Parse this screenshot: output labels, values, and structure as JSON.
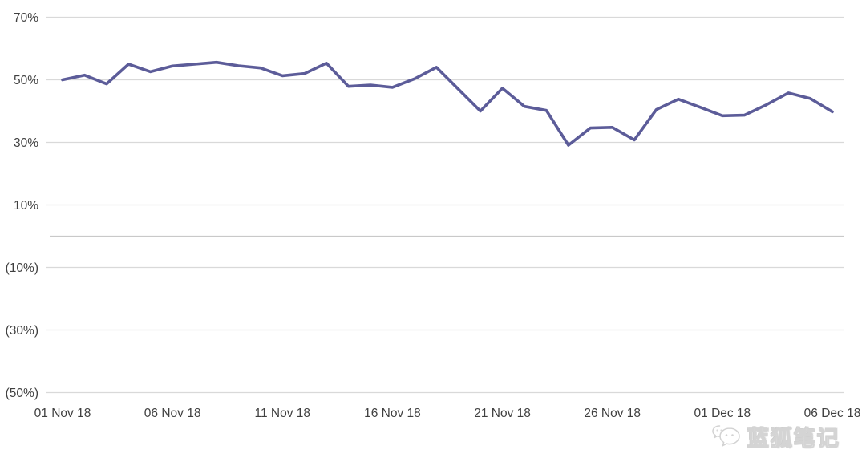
{
  "chart_data": {
    "type": "line",
    "title": "",
    "xlabel": "",
    "ylabel": "",
    "ylim": [
      -50,
      70
    ],
    "grid": true,
    "legend": false,
    "x": [
      "01 Nov 18",
      "02 Nov 18",
      "03 Nov 18",
      "04 Nov 18",
      "05 Nov 18",
      "06 Nov 18",
      "07 Nov 18",
      "08 Nov 18",
      "09 Nov 18",
      "10 Nov 18",
      "11 Nov 18",
      "12 Nov 18",
      "13 Nov 18",
      "14 Nov 18",
      "15 Nov 18",
      "16 Nov 18",
      "17 Nov 18",
      "18 Nov 18",
      "19 Nov 18",
      "20 Nov 18",
      "21 Nov 18",
      "22 Nov 18",
      "23 Nov 18",
      "24 Nov 18",
      "25 Nov 18",
      "26 Nov 18",
      "27 Nov 18",
      "28 Nov 18",
      "29 Nov 18",
      "30 Nov 18",
      "01 Dec 18",
      "02 Dec 18",
      "03 Dec 18",
      "04 Dec 18",
      "05 Dec 18",
      "06 Dec 18"
    ],
    "values": [
      50.0,
      51.5,
      48.7,
      55.0,
      52.6,
      54.4,
      55.0,
      55.6,
      54.5,
      53.8,
      51.3,
      52.0,
      55.3,
      47.9,
      48.3,
      47.6,
      50.3,
      54.0,
      47.0,
      40.0,
      47.3,
      41.5,
      40.2,
      29.1,
      34.6,
      34.8,
      30.8,
      40.5,
      43.8,
      41.2,
      38.5,
      38.7,
      42.0,
      45.8,
      44.0,
      39.8
    ],
    "y_axis": {
      "tick_values": [
        70,
        50,
        30,
        10,
        -10,
        -30,
        -50
      ],
      "tick_labels": [
        "70%",
        "50%",
        "30%",
        "10%",
        "(10%)",
        "(30%)",
        "(50%)"
      ],
      "baseline_value": 0
    },
    "x_axis": {
      "tick_indices": [
        0,
        5,
        10,
        15,
        20,
        25,
        30,
        35
      ],
      "tick_labels": [
        "01 Nov 18",
        "06 Nov 18",
        "11 Nov 18",
        "16 Nov 18",
        "21 Nov 18",
        "26 Nov 18",
        "01 Dec 18",
        "06 Dec 18"
      ]
    },
    "colors": {
      "line": "#5c5c99",
      "gridline": "#d9d9d9",
      "baseline": "#c9c9c9",
      "tick_text": "#404040",
      "background": "#ffffff"
    }
  },
  "watermark": {
    "text": "蓝狐笔记",
    "icon": "chat-bubbles-icon"
  }
}
